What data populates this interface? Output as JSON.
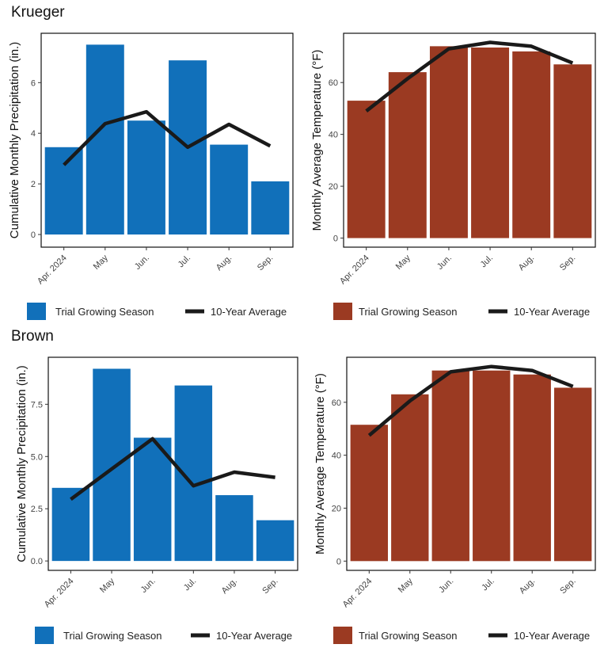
{
  "sites": [
    {
      "name": "Krueger"
    },
    {
      "name": "Brown"
    }
  ],
  "legend": {
    "bar_label": "Trial Growing Season",
    "line_label": "10-Year Average"
  },
  "colors": {
    "precip_bar": "#1170BA",
    "temp_bar": "#9B3A22",
    "line": "#1A1A1A"
  },
  "chart_data": [
    {
      "id": "krueger-precip",
      "site": "Krueger",
      "type": "bar",
      "categories": [
        "Apr. 2024",
        "May",
        "Jun.",
        "Jul.",
        "Aug.",
        "Sep."
      ],
      "series": [
        {
          "name": "Trial Growing Season",
          "kind": "bar",
          "values": [
            3.45,
            7.5,
            4.5,
            6.88,
            3.55,
            2.1
          ]
        },
        {
          "name": "10-Year Average",
          "kind": "line",
          "values": [
            2.75,
            4.38,
            4.85,
            3.45,
            4.35,
            3.5
          ]
        }
      ],
      "ylabel": "Cumulative Monthly Precipitation (in.)",
      "ylim": [
        -0.5,
        7.95
      ],
      "yticks": [
        0,
        2,
        4,
        6
      ],
      "ytick_labels": [
        "0",
        "2",
        "4",
        "6"
      ],
      "grid": false
    },
    {
      "id": "krueger-temp",
      "site": "Krueger",
      "type": "bar",
      "categories": [
        "Apr. 2024",
        "May",
        "Jun.",
        "Jul.",
        "Aug.",
        "Sep."
      ],
      "series": [
        {
          "name": "Trial Growing Season",
          "kind": "bar",
          "values": [
            53,
            64,
            74,
            73.5,
            72,
            67
          ]
        },
        {
          "name": "10-Year Average",
          "kind": "line",
          "values": [
            49,
            61.5,
            73,
            75.5,
            74,
            67.5
          ]
        }
      ],
      "ylabel": "Monthly Average Temperature  (°F)",
      "ylim": [
        -3.5,
        79
      ],
      "yticks": [
        0,
        20,
        40,
        60
      ],
      "ytick_labels": [
        "0",
        "20",
        "40",
        "60"
      ],
      "grid": false
    },
    {
      "id": "brown-precip",
      "site": "Brown",
      "type": "bar",
      "categories": [
        "Apr. 2024",
        "May",
        "Jun.",
        "Jul.",
        "Aug.",
        "Sep."
      ],
      "series": [
        {
          "name": "Trial Growing Season",
          "kind": "bar",
          "values": [
            3.5,
            9.2,
            5.9,
            8.4,
            3.15,
            1.95
          ]
        },
        {
          "name": "10-Year Average",
          "kind": "line",
          "values": [
            2.95,
            4.4,
            5.85,
            3.6,
            4.25,
            4.0
          ]
        }
      ],
      "ylabel": "Cumulative Monthly Precipitation (in.)",
      "ylim": [
        -0.45,
        9.75
      ],
      "yticks": [
        0,
        2.5,
        5.0,
        7.5
      ],
      "ytick_labels": [
        "0.0",
        "2.5",
        "5.0",
        "7.5"
      ],
      "grid": false
    },
    {
      "id": "brown-temp",
      "site": "Brown",
      "type": "bar",
      "categories": [
        "Apr. 2024",
        "May",
        "Jun.",
        "Jul.",
        "Aug.",
        "Sep."
      ],
      "series": [
        {
          "name": "Trial Growing Season",
          "kind": "bar",
          "values": [
            51.5,
            63,
            72,
            72,
            70.5,
            65.5
          ]
        },
        {
          "name": "10-Year Average",
          "kind": "line",
          "values": [
            47.5,
            60.5,
            71.5,
            73.5,
            72,
            66
          ]
        }
      ],
      "ylabel": "Monthly Average Temperature  (°F)",
      "ylim": [
        -3.5,
        77
      ],
      "yticks": [
        0,
        20,
        40,
        60
      ],
      "ytick_labels": [
        "0",
        "20",
        "40",
        "60"
      ],
      "grid": false
    }
  ]
}
